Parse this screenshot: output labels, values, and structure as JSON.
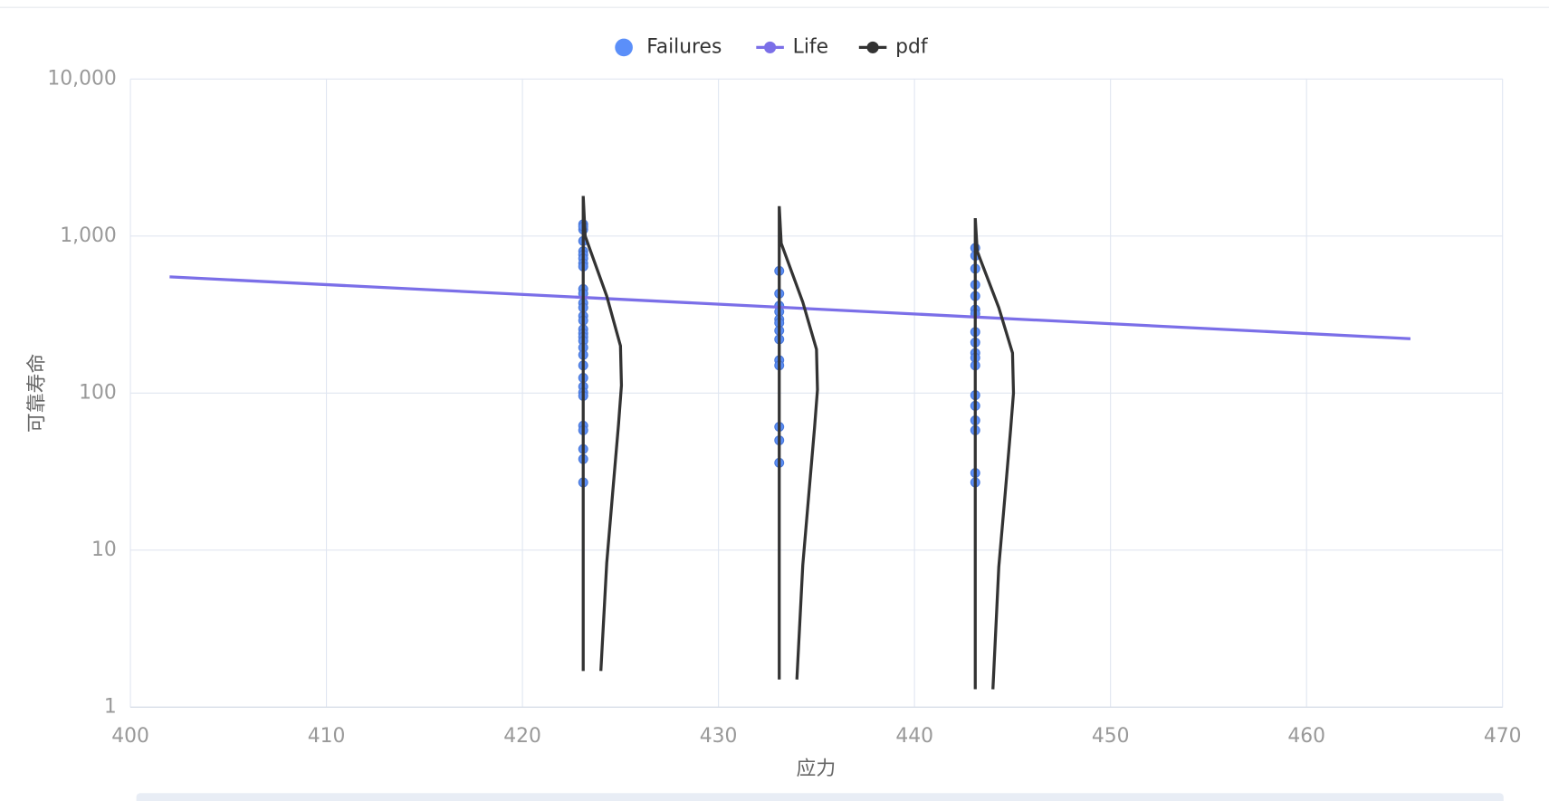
{
  "chart_data": {
    "type": "scatter",
    "x_label": "应力",
    "y_label": "可靠寿命",
    "xlim": [
      400,
      470
    ],
    "xticks": [
      400,
      410,
      420,
      430,
      440,
      450,
      460,
      470
    ],
    "ylim": [
      1,
      10000
    ],
    "log_y": true,
    "yticks": [
      1,
      10,
      100,
      {
        "value": 1000,
        "label": "1,000"
      },
      {
        "value": 10000,
        "label": "10,000"
      }
    ],
    "grid": true,
    "legend": "top",
    "series": [
      {
        "name": "Failures",
        "type": "scatter",
        "color": "#5b8ff9",
        "x": [
          423.1,
          423.1,
          423.1,
          423.1,
          423.1,
          423.1,
          423.1,
          423.1,
          423.1,
          423.1,
          423.1,
          423.1,
          423.1,
          423.1,
          423.1,
          423.1,
          423.1,
          423.1,
          423.1,
          423.1,
          423.1,
          423.1,
          423.1,
          423.1,
          423.1,
          423.1,
          423.1,
          423.1,
          423.1,
          423.1,
          423.1,
          433.1,
          433.1,
          433.1,
          433.1,
          433.1,
          433.1,
          433.1,
          433.1,
          433.1,
          433.1,
          433.1,
          433.1,
          433.1,
          443.1,
          443.1,
          443.1,
          443.1,
          443.1,
          443.1,
          443.1,
          443.1,
          443.1,
          443.1,
          443.1,
          443.1,
          443.1,
          443.1,
          443.1,
          443.1,
          443.1,
          443.1
        ],
        "values": [
          1189,
          1100,
          930,
          800,
          760,
          720,
          670,
          640,
          460,
          430,
          375,
          350,
          310,
          290,
          255,
          240,
          228,
          215,
          195,
          175,
          150,
          125,
          110,
          101,
          96,
          62,
          58,
          44,
          38,
          27,
          1150,
          600,
          430,
          360,
          330,
          295,
          280,
          250,
          220,
          162,
          150,
          61,
          50,
          36,
          840,
          750,
          620,
          490,
          415,
          340,
          320,
          245,
          210,
          180,
          168,
          150,
          97,
          83,
          67,
          58,
          31,
          27
        ]
      },
      {
        "name": "Life",
        "type": "line",
        "color": "#7b6fe8",
        "x": [
          402,
          465.3
        ],
        "values": [
          550,
          222
        ]
      },
      {
        "name": "pdf",
        "type": "line",
        "color": "#333333",
        "x": [
          423.1,
          423.1,
          423.2,
          424.3,
          425.0,
          425.05,
          424.9,
          424.6,
          424.3,
          424.0,
          null,
          433.1,
          433.1,
          433.2,
          434.3,
          435.0,
          435.05,
          434.9,
          434.6,
          434.3,
          434.0,
          null,
          443.1,
          443.1,
          443.2,
          444.3,
          445.0,
          445.05,
          444.9,
          444.6,
          444.3,
          444.0
        ],
        "values": [
          1.7,
          1800,
          1000,
          415,
          200,
          112,
          63,
          23,
          8.3,
          1.7,
          null,
          1.5,
          1550,
          900,
          380,
          190,
          105,
          60,
          22,
          8,
          1.5,
          null,
          1.3,
          1300,
          800,
          350,
          180,
          100,
          58,
          21,
          7.8,
          1.3
        ]
      }
    ]
  }
}
